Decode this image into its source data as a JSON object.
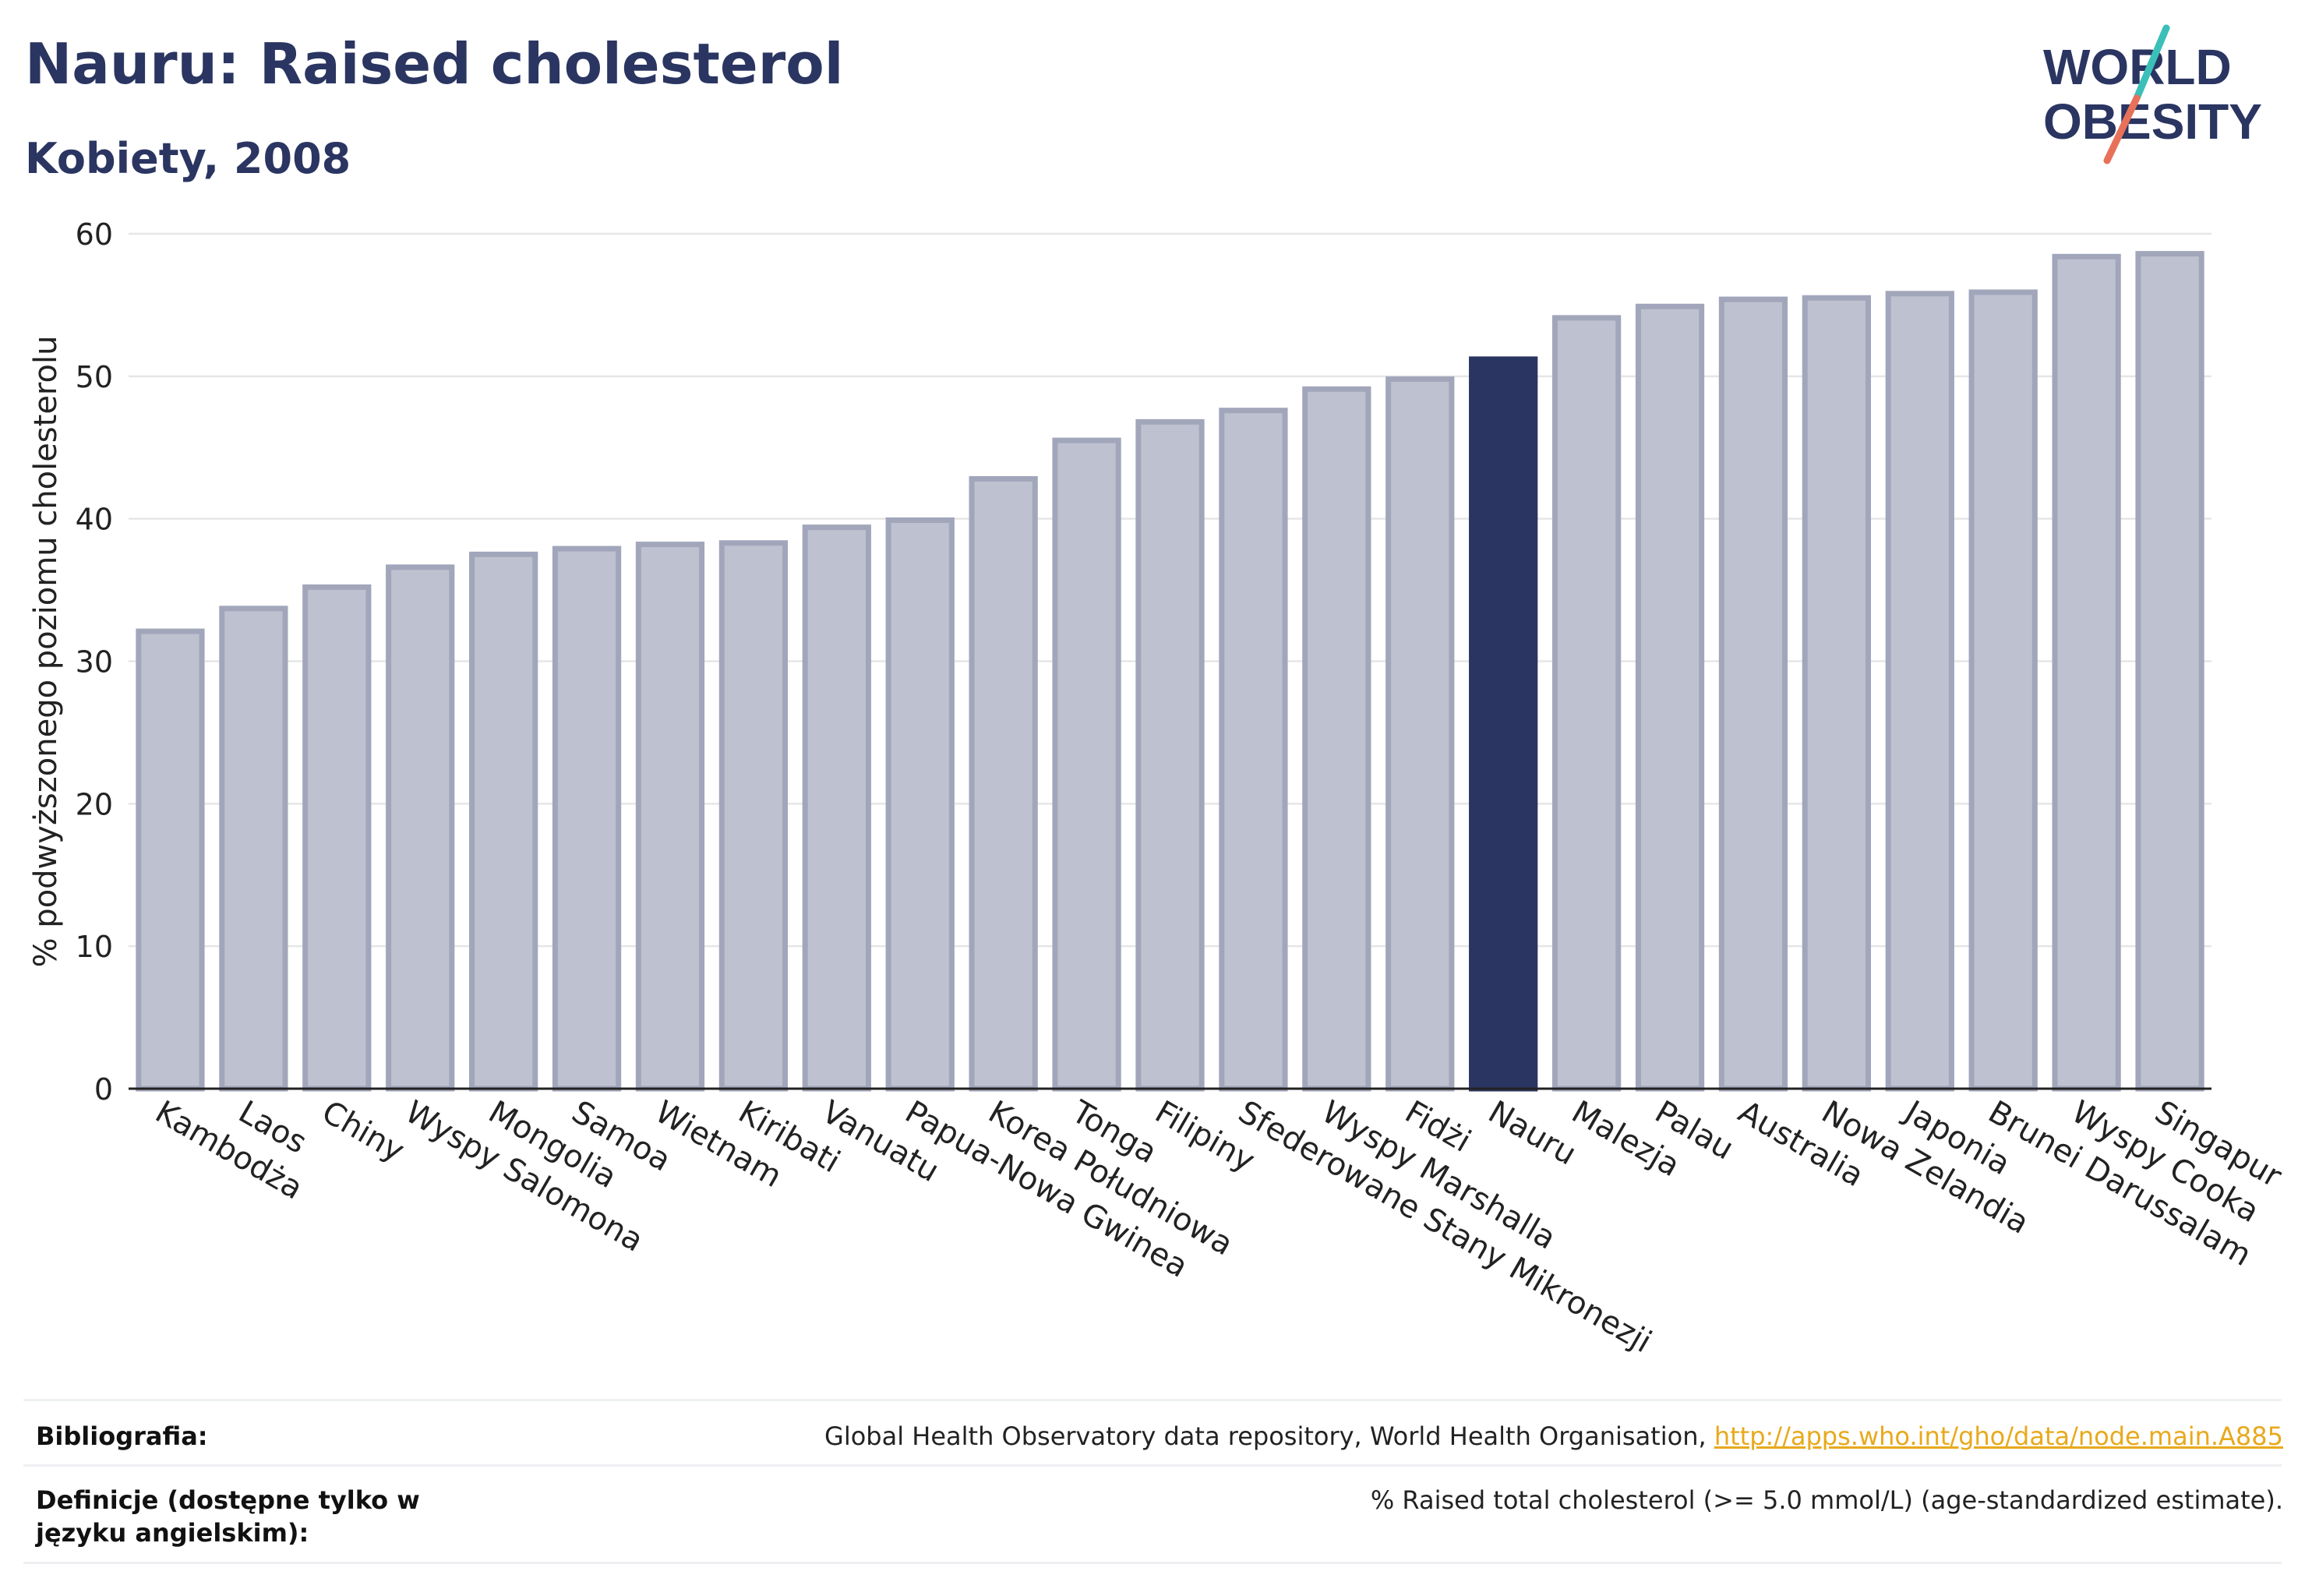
{
  "header": {
    "title": "Nauru: Raised cholesterol",
    "subtitle": "Kobiety, 2008"
  },
  "logo": {
    "line1": "WORLD",
    "line2": "OBESITY",
    "colors": {
      "text": "#2a3561",
      "slash_teal": "#3bbfb9",
      "slash_coral": "#e8715a"
    }
  },
  "colors": {
    "bar_default": "#bec1cf",
    "bar_default_stroke": "#a1a6bb",
    "bar_highlight": "#2a3561",
    "grid": "#e6e6e6",
    "axis": "#222222"
  },
  "chart_data": {
    "type": "bar",
    "ylabel": "% podwyższonego poziomu cholesterolu",
    "ylim": [
      0,
      60
    ],
    "yticks": [
      0,
      10,
      20,
      30,
      40,
      50,
      60
    ],
    "grid": true,
    "highlight": "Nauru",
    "categories": [
      "Kambodża",
      "Laos",
      "Chiny",
      "Wyspy Salomona",
      "Mongolia",
      "Samoa",
      "Wietnam",
      "Kiribati",
      "Vanuatu",
      "Papua-Nowa Gwinea",
      "Korea Południowa",
      "Tonga",
      "Filipiny",
      "Sfederowane Stany Mikronezji",
      "Wyspy Marshalla",
      "Fidżi",
      "Nauru",
      "Malezja",
      "Palau",
      "Australia",
      "Nowa Zelandia",
      "Japonia",
      "Brunei Darussalam",
      "Wyspy Cooka",
      "Singapur"
    ],
    "values": [
      32.1,
      33.7,
      35.2,
      36.6,
      37.5,
      37.9,
      38.2,
      38.3,
      39.4,
      39.9,
      42.8,
      45.5,
      46.8,
      47.6,
      49.1,
      49.8,
      51.2,
      54.1,
      54.9,
      55.4,
      55.5,
      55.8,
      55.9,
      58.4,
      58.6
    ]
  },
  "footer": {
    "bibliography_label": "Bibliografia:",
    "bibliography_text": "Global Health Observatory data repository, World Health Organisation, ",
    "bibliography_link": "http://apps.who.int/gho/data/node.main.A885",
    "definitions_label": "Definicje (dostępne tylko w języku angielskim):",
    "definitions_text": "% Raised total cholesterol (>= 5.0 mmol/L) (age-standardized estimate)."
  }
}
